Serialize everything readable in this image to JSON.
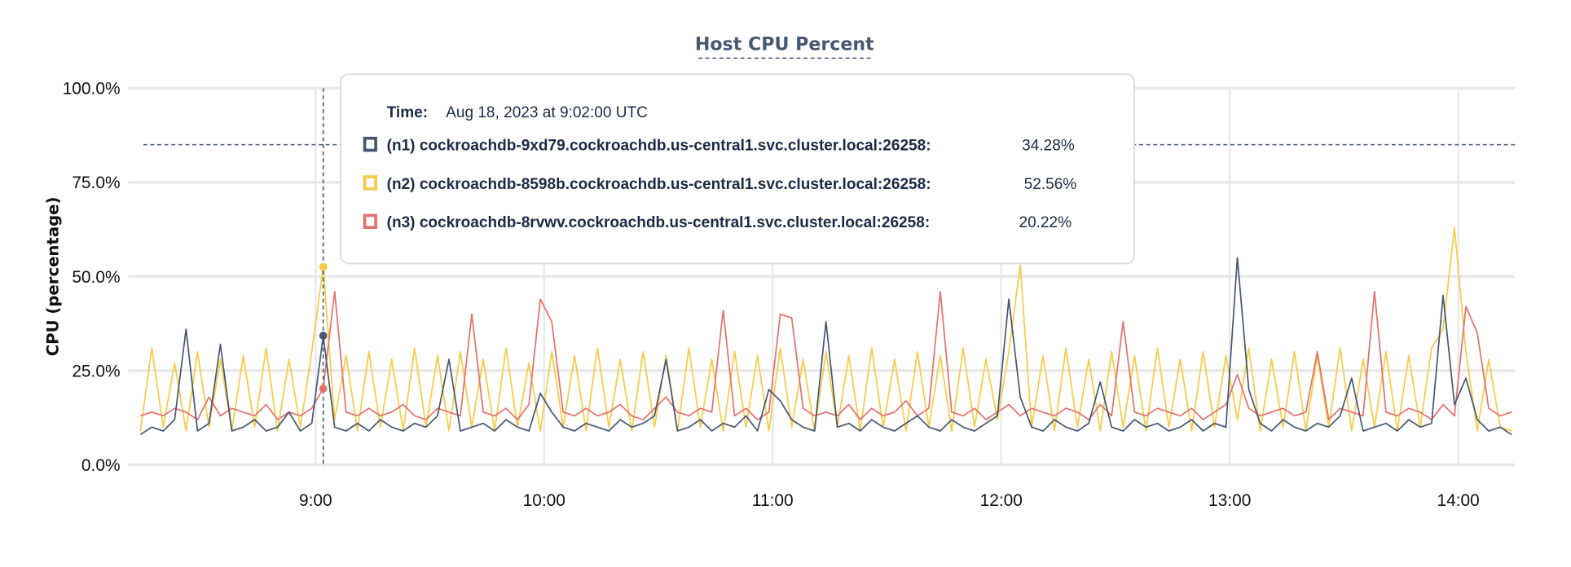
{
  "chart_data": {
    "type": "line",
    "title": "Host CPU Percent",
    "ylabel": "CPU (percentage)",
    "xlabel": "",
    "ylim": [
      0,
      100
    ],
    "y_ticks": [
      "0.0%",
      "25.0%",
      "50.0%",
      "75.0%",
      "100.0%"
    ],
    "y_tick_values": [
      0,
      25,
      50,
      75,
      100
    ],
    "x_ticks": [
      "9:00",
      "10:00",
      "11:00",
      "12:00",
      "13:00",
      "14:00"
    ],
    "grid": true,
    "threshold_line": 85,
    "x": [
      "08:14",
      "08:17",
      "08:20",
      "08:23",
      "08:26",
      "08:29",
      "08:32",
      "08:35",
      "08:38",
      "08:41",
      "08:44",
      "08:47",
      "08:50",
      "08:53",
      "08:56",
      "08:59",
      "09:02",
      "09:05",
      "09:08",
      "09:11",
      "09:14",
      "09:17",
      "09:20",
      "09:23",
      "09:26",
      "09:29",
      "09:32",
      "09:35",
      "09:38",
      "09:41",
      "09:44",
      "09:47",
      "09:50",
      "09:53",
      "09:56",
      "09:59",
      "10:02",
      "10:05",
      "10:08",
      "10:11",
      "10:14",
      "10:17",
      "10:20",
      "10:23",
      "10:26",
      "10:29",
      "10:32",
      "10:35",
      "10:38",
      "10:41",
      "10:44",
      "10:47",
      "10:50",
      "10:53",
      "10:56",
      "10:59",
      "11:02",
      "11:05",
      "11:08",
      "11:11",
      "11:14",
      "11:17",
      "11:20",
      "11:23",
      "11:26",
      "11:29",
      "11:32",
      "11:35",
      "11:38",
      "11:41",
      "11:44",
      "11:47",
      "11:50",
      "11:53",
      "11:56",
      "11:59",
      "12:02",
      "12:05",
      "12:08",
      "12:11",
      "12:14",
      "12:17",
      "12:20",
      "12:23",
      "12:26",
      "12:29",
      "12:32",
      "12:35",
      "12:38",
      "12:41",
      "12:44",
      "12:47",
      "12:50",
      "12:53",
      "12:56",
      "12:59",
      "13:02",
      "13:05",
      "13:08",
      "13:11",
      "13:14",
      "13:17",
      "13:20",
      "13:23",
      "13:26",
      "13:29",
      "13:32",
      "13:35",
      "13:38",
      "13:41",
      "13:44",
      "13:47",
      "13:50",
      "13:53",
      "13:56",
      "13:59",
      "14:02",
      "14:05",
      "14:08",
      "14:11",
      "14:14"
    ],
    "series": [
      {
        "name": "(n1) cockroachdb-9xd79.cockroachdb.us-central1.svc.cluster.local:26258",
        "color": "#475872",
        "values": [
          8,
          10,
          9,
          12,
          36,
          9,
          11,
          32,
          9,
          10,
          12,
          9,
          10,
          14,
          9,
          11,
          34.28,
          10,
          9,
          11,
          9,
          12,
          10,
          9,
          11,
          10,
          13,
          28,
          9,
          10,
          11,
          9,
          12,
          10,
          9,
          19,
          14,
          10,
          9,
          11,
          10,
          9,
          12,
          10,
          11,
          13,
          28,
          9,
          10,
          12,
          9,
          11,
          10,
          13,
          9,
          20,
          17,
          12,
          10,
          9,
          38,
          10,
          11,
          9,
          12,
          10,
          9,
          11,
          13,
          10,
          9,
          12,
          10,
          9,
          11,
          13,
          44,
          18,
          10,
          9,
          12,
          10,
          9,
          11,
          22,
          10,
          9,
          12,
          10,
          11,
          9,
          10,
          12,
          9,
          11,
          10,
          55,
          20,
          11,
          9,
          12,
          10,
          9,
          11,
          10,
          13,
          23,
          9,
          10,
          11,
          9,
          12,
          10,
          11,
          45,
          16,
          23,
          12,
          9,
          10,
          8
        ]
      },
      {
        "name": "(n2) cockroachdb-8598b.cockroachdb.us-central1.svc.cluster.local:26258",
        "color": "#F7CB45",
        "values": [
          9,
          31,
          10,
          27,
          9,
          30,
          10,
          28,
          9,
          29,
          10,
          31,
          9,
          28,
          10,
          30,
          52.56,
          12,
          29,
          9,
          30,
          10,
          28,
          9,
          31,
          10,
          29,
          9,
          30,
          10,
          28,
          9,
          31,
          10,
          27,
          9,
          30,
          10,
          29,
          9,
          31,
          10,
          28,
          9,
          30,
          10,
          29,
          9,
          31,
          10,
          28,
          9,
          30,
          10,
          29,
          9,
          31,
          10,
          28,
          9,
          30,
          10,
          29,
          9,
          31,
          10,
          28,
          9,
          30,
          10,
          29,
          9,
          31,
          10,
          28,
          12,
          30,
          53,
          10,
          29,
          9,
          31,
          10,
          28,
          9,
          30,
          10,
          29,
          9,
          31,
          10,
          28,
          9,
          30,
          10,
          29,
          12,
          31,
          9,
          28,
          10,
          30,
          9,
          29,
          10,
          31,
          9,
          28,
          10,
          30,
          9,
          29,
          10,
          31,
          36,
          63,
          30,
          9,
          28,
          10,
          9
        ]
      },
      {
        "name": "(n3) cockroachdb-8rvwv.cockroachdb.us-central1.svc.cluster.local:26258",
        "color": "#E4716D",
        "values": [
          13,
          14,
          13,
          15,
          14,
          12,
          18,
          13,
          15,
          14,
          13,
          16,
          12,
          14,
          13,
          15,
          20.22,
          46,
          14,
          13,
          15,
          13,
          14,
          16,
          13,
          12,
          15,
          14,
          13,
          40,
          14,
          13,
          15,
          12,
          16,
          44,
          38,
          14,
          13,
          15,
          13,
          14,
          16,
          13,
          12,
          15,
          18,
          14,
          13,
          15,
          14,
          41,
          13,
          15,
          12,
          14,
          40,
          39,
          15,
          13,
          14,
          13,
          16,
          12,
          15,
          13,
          14,
          17,
          13,
          15,
          46,
          14,
          13,
          15,
          12,
          14,
          16,
          13,
          15,
          14,
          13,
          15,
          14,
          12,
          16,
          13,
          38,
          14,
          13,
          15,
          14,
          13,
          15,
          12,
          14,
          16,
          24,
          15,
          13,
          14,
          15,
          13,
          14,
          30,
          12,
          15,
          14,
          13,
          46,
          14,
          13,
          15,
          14,
          12,
          16,
          13,
          42,
          35,
          15,
          13,
          14
        ]
      }
    ],
    "tooltip": {
      "time_label": "Time:",
      "time_value": "Aug 18, 2023 at 9:02:00 UTC",
      "hover_x": "09:02",
      "rows": [
        {
          "label": "(n1) cockroachdb-9xd79.cockroachdb.us-central1.svc.cluster.local:26258:",
          "value": "34.28%",
          "color": "#475872"
        },
        {
          "label": "(n2) cockroachdb-8598b.cockroachdb.us-central1.svc.cluster.local:26258:",
          "value": "52.56%",
          "color": "#F7CB45"
        },
        {
          "label": "(n3) cockroachdb-8rvwv.cockroachdb.us-central1.svc.cluster.local:26258:",
          "value": "20.22%",
          "color": "#E4716D"
        }
      ]
    }
  }
}
